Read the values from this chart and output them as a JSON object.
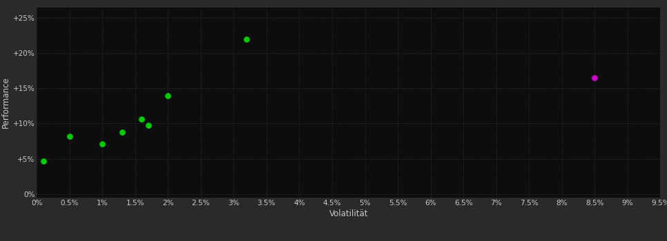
{
  "background_color": "#2a2a2a",
  "plot_bg_color": "#0d0d0d",
  "grid_color": "#3a3a3a",
  "text_color": "#cccccc",
  "xlabel": "Volatilität",
  "ylabel": "Performance",
  "xlim": [
    0,
    0.095
  ],
  "ylim": [
    -0.005,
    0.265
  ],
  "xticks": [
    0.0,
    0.005,
    0.01,
    0.015,
    0.02,
    0.025,
    0.03,
    0.035,
    0.04,
    0.045,
    0.05,
    0.055,
    0.06,
    0.065,
    0.07,
    0.075,
    0.08,
    0.085,
    0.09,
    0.095
  ],
  "yticks": [
    0.0,
    0.05,
    0.1,
    0.15,
    0.2,
    0.25
  ],
  "green_dots": [
    [
      0.001,
      0.047
    ],
    [
      0.005,
      0.082
    ],
    [
      0.01,
      0.071
    ],
    [
      0.013,
      0.088
    ],
    [
      0.016,
      0.106
    ],
    [
      0.017,
      0.098
    ],
    [
      0.02,
      0.14
    ],
    [
      0.032,
      0.22
    ]
  ],
  "magenta_dot": [
    0.085,
    0.165
  ],
  "green_color": "#00cc00",
  "magenta_color": "#cc00cc",
  "dot_size": 28,
  "font_size_labels": 7.5,
  "font_size_axis_title": 8.5
}
